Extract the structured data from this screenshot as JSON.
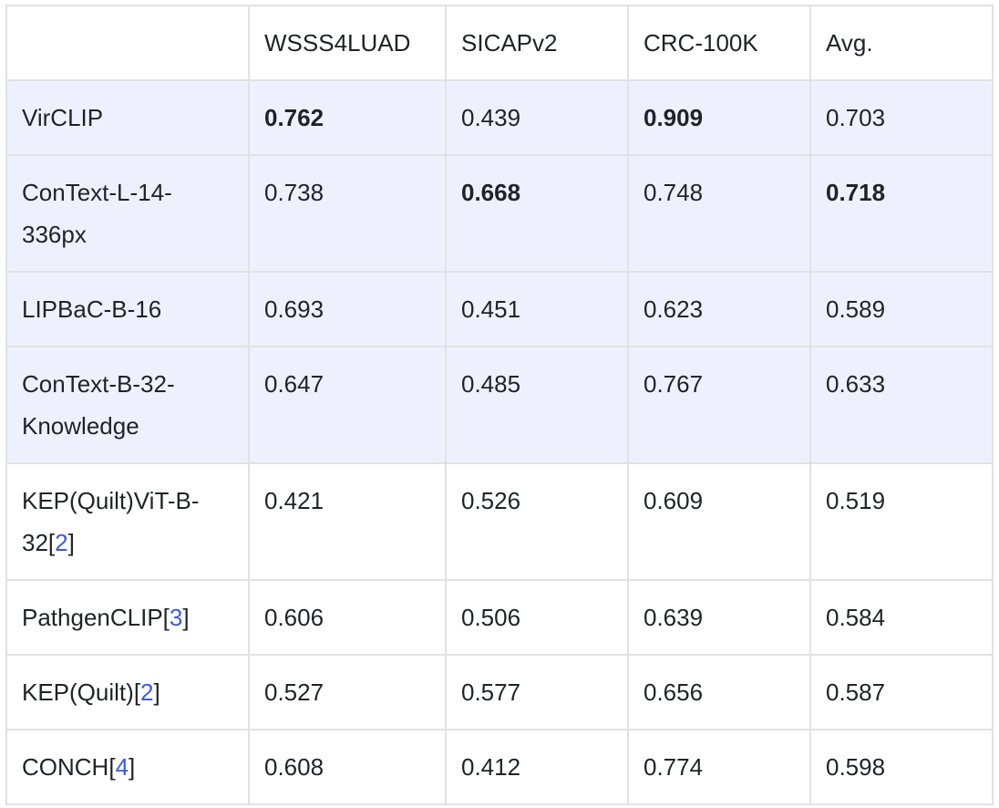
{
  "header": [
    "",
    "WSSS4LUAD",
    "SICAPv2",
    "CRC-100K",
    "Avg."
  ],
  "rows": [
    {
      "model": "VirCLIP",
      "ref": "",
      "values": [
        "0.762",
        "0.439",
        "0.909",
        "0.703"
      ],
      "bold": [
        true,
        false,
        true,
        false
      ],
      "highlight": true
    },
    {
      "model": "ConText-L-14-336px",
      "ref": "",
      "values": [
        "0.738",
        "0.668",
        "0.748",
        "0.718"
      ],
      "bold": [
        false,
        true,
        false,
        true
      ],
      "highlight": true
    },
    {
      "model": "LIPBaC-B-16",
      "ref": "",
      "values": [
        "0.693",
        "0.451",
        "0.623",
        "0.589"
      ],
      "bold": [
        false,
        false,
        false,
        false
      ],
      "highlight": true
    },
    {
      "model": "ConText-B-32-Knowledge",
      "ref": "",
      "values": [
        "0.647",
        "0.485",
        "0.767",
        "0.633"
      ],
      "bold": [
        false,
        false,
        false,
        false
      ],
      "highlight": true
    },
    {
      "model": "KEP(Quilt)ViT-B-32",
      "ref": "2",
      "values": [
        "0.421",
        "0.526",
        "0.609",
        "0.519"
      ],
      "bold": [
        false,
        false,
        false,
        false
      ],
      "highlight": false
    },
    {
      "model": "PathgenCLIP",
      "ref": "3",
      "values": [
        "0.606",
        "0.506",
        "0.639",
        "0.584"
      ],
      "bold": [
        false,
        false,
        false,
        false
      ],
      "highlight": false
    },
    {
      "model": "KEP(Quilt)",
      "ref": "2",
      "values": [
        "0.527",
        "0.577",
        "0.656",
        "0.587"
      ],
      "bold": [
        false,
        false,
        false,
        false
      ],
      "highlight": false
    },
    {
      "model": "CONCH",
      "ref": "4",
      "values": [
        "0.608",
        "0.412",
        "0.774",
        "0.598"
      ],
      "bold": [
        false,
        false,
        false,
        false
      ],
      "highlight": false
    }
  ],
  "colors": {
    "highlight_bg": "#eef1fd",
    "border": "#e2e2e2",
    "text": "#1f2328",
    "ref_link": "#3b5bdb"
  }
}
